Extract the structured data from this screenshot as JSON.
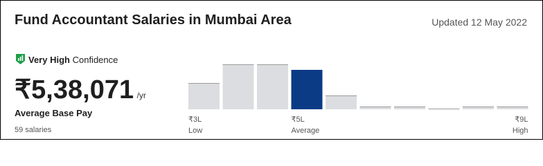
{
  "header": {
    "title": "Fund Accountant Salaries in Mumbai Area",
    "updated": "Updated 12 May 2022"
  },
  "confidence": {
    "level": "Very High",
    "text": "Confidence"
  },
  "pay": {
    "amount": "₹5,38,071",
    "unit": "/yr",
    "label": "Average Base Pay",
    "count": "59 salaries"
  },
  "chart_data": {
    "type": "histogram",
    "values": [
      38,
      65,
      65,
      57,
      20,
      4,
      4,
      1,
      4,
      4
    ],
    "ylim": [
      0,
      65
    ],
    "color": "#dcdde0",
    "edge_color": "#9a9a9a",
    "highlight_color": "#0c3b86",
    "highlight_index": 3,
    "axis_labels": [
      {
        "label": "₹3L",
        "caption": "Low"
      },
      {
        "label": "₹5L",
        "caption": "Average"
      },
      {
        "label": "₹9L",
        "caption": "High"
      }
    ]
  }
}
